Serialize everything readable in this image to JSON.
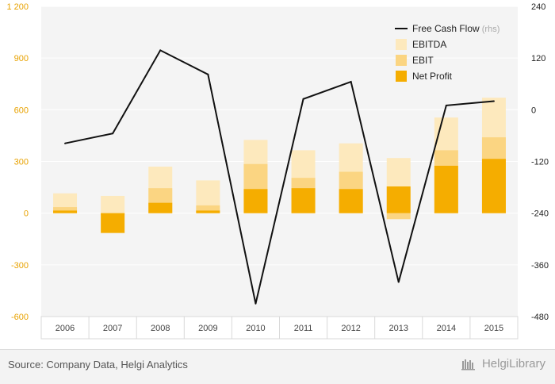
{
  "chart_data": {
    "type": "bar",
    "categories": [
      "2006",
      "2007",
      "2008",
      "2009",
      "2010",
      "2011",
      "2012",
      "2013",
      "2014",
      "2015"
    ],
    "series": [
      {
        "name": "EBITDA",
        "kind": "bar",
        "axis": "left",
        "color": "#fde9bd",
        "values": [
          115,
          100,
          270,
          190,
          425,
          365,
          405,
          320,
          555,
          670
        ]
      },
      {
        "name": "EBIT",
        "kind": "bar",
        "axis": "left",
        "color": "#fbd582",
        "values": [
          35,
          -10,
          145,
          45,
          285,
          205,
          240,
          -35,
          365,
          440
        ]
      },
      {
        "name": "Net Profit",
        "kind": "bar",
        "axis": "left",
        "color": "#f5ad00",
        "values": [
          15,
          -115,
          60,
          15,
          140,
          145,
          140,
          155,
          275,
          315
        ]
      },
      {
        "name": "Free Cash Flow",
        "kind": "line",
        "axis": "right",
        "color": "#111111",
        "values": [
          -78,
          -55,
          138,
          82,
          -450,
          25,
          65,
          -400,
          10,
          20
        ]
      }
    ],
    "left_axis": {
      "ylim": [
        -600,
        1200
      ],
      "ticks": [
        "1 200",
        "900",
        "600",
        "300",
        "0",
        "-300",
        "-600"
      ],
      "tick_values": [
        1200,
        900,
        600,
        300,
        0,
        -300,
        -600
      ]
    },
    "right_axis": {
      "ylim": [
        -480,
        240
      ],
      "ticks": [
        "240",
        "120",
        "0",
        "-120",
        "-240",
        "-360",
        "-480"
      ],
      "tick_values": [
        240,
        120,
        0,
        -120,
        -240,
        -360,
        -480
      ]
    },
    "legend": {
      "position": "top-right",
      "items": [
        {
          "label": "Free Cash Flow",
          "suffix": "(rhs)",
          "type": "line",
          "color": "#111111"
        },
        {
          "label": "EBITDA",
          "suffix": "",
          "type": "box",
          "color": "#fde9bd"
        },
        {
          "label": "EBIT",
          "suffix": "",
          "type": "box",
          "color": "#fbd582"
        },
        {
          "label": "Net Profit",
          "suffix": "",
          "type": "box",
          "color": "#f5ad00"
        }
      ]
    },
    "grid": true
  },
  "footer": {
    "source": "Source: Company Data, Helgi Analytics",
    "brand": "HelgiLibrary"
  }
}
